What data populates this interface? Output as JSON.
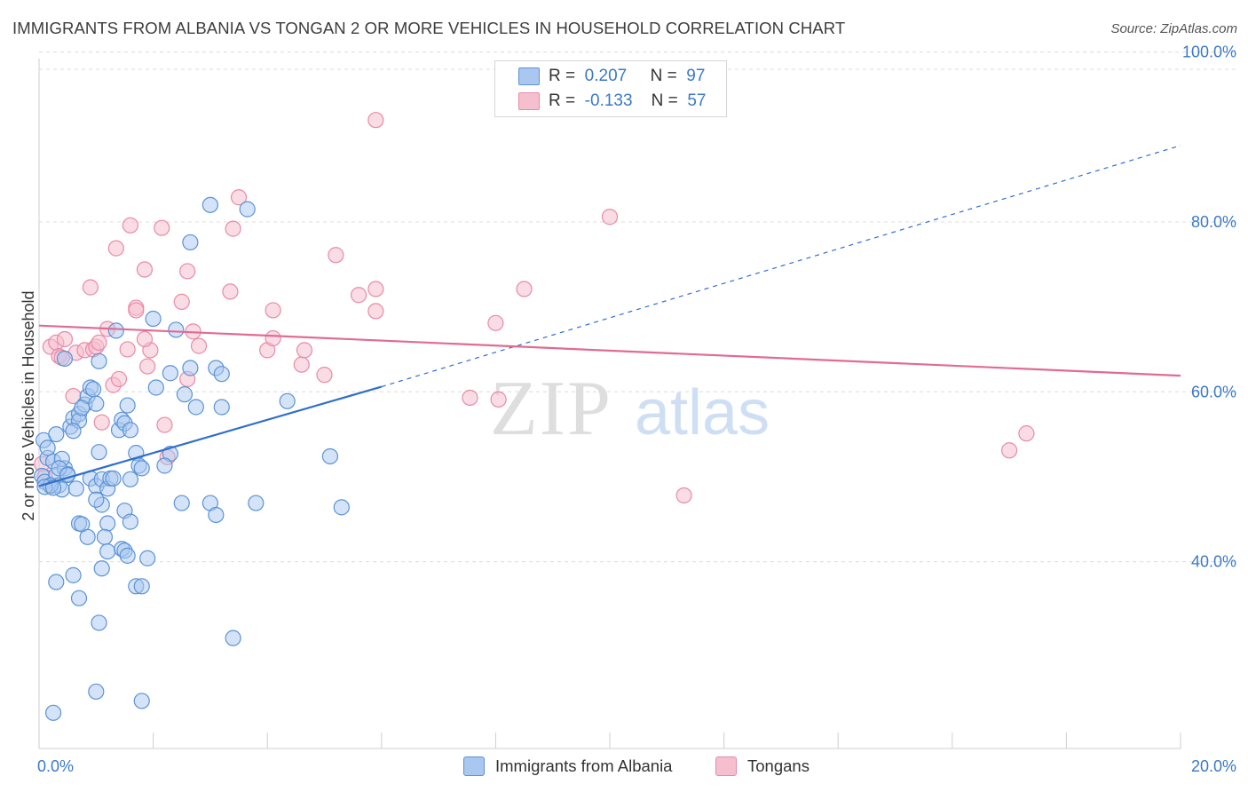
{
  "header": {
    "title": "IMMIGRANTS FROM ALBANIA VS TONGAN 2 OR MORE VEHICLES IN HOUSEHOLD CORRELATION CHART",
    "source": "Source: ZipAtlas.com"
  },
  "legend_top": {
    "rows": [
      {
        "r_label": "R =",
        "r_value": "0.207",
        "n_label": "N =",
        "n_value": "97"
      },
      {
        "r_label": "R =",
        "r_value": "-0.133",
        "n_label": "N =",
        "n_value": "57"
      }
    ]
  },
  "watermark": {
    "zip": "ZIP",
    "atlas": "atlas"
  },
  "colors": {
    "albania_fill": "#a9c7ef",
    "albania_stroke": "#5b93d6",
    "albania_line": "#2f6fcb",
    "tongan_fill": "#f6bfd0",
    "tongan_stroke": "#e88aa9",
    "tongan_line": "#e06b93",
    "tick_text": "#3a78c9",
    "grid": "#dcdcdc"
  },
  "chart_data": {
    "type": "scatter",
    "title": "IMMIGRANTS FROM ALBANIA VS TONGAN 2 OR MORE VEHICLES IN HOUSEHOLD CORRELATION CHART",
    "xlabel": "",
    "ylabel": "2 or more Vehicles in Household",
    "xlim": [
      0,
      20
    ],
    "ylim": [
      18,
      103
    ],
    "x_tick_labels": [
      "0.0%",
      "20.0%"
    ],
    "y_ticks": [
      40,
      60,
      80,
      100
    ],
    "y_tick_labels": [
      "40.0%",
      "60.0%",
      "80.0%",
      "100.0%"
    ],
    "grid": true,
    "legend_placement": "top-center and bottom",
    "series": [
      {
        "name": "Immigrants from Albania",
        "r": 0.207,
        "n": 97,
        "trend": {
          "x0": 0.0,
          "y0": 48.9,
          "x1": 6.0,
          "y1": 60.6,
          "extend_to_x": 20.0,
          "extend_to_y": 89.0
        },
        "points": [
          [
            0.05,
            50.1
          ],
          [
            0.1,
            49.4
          ],
          [
            0.15,
            52.2
          ],
          [
            0.2,
            48.9
          ],
          [
            0.25,
            51.8
          ],
          [
            0.3,
            50.2
          ],
          [
            0.35,
            49.0
          ],
          [
            0.4,
            48.5
          ],
          [
            0.45,
            51.0
          ],
          [
            0.5,
            50.3
          ],
          [
            0.08,
            54.3
          ],
          [
            0.3,
            55.0
          ],
          [
            0.55,
            55.9
          ],
          [
            0.6,
            56.9
          ],
          [
            0.7,
            57.4
          ],
          [
            0.8,
            58.5
          ],
          [
            0.85,
            59.5
          ],
          [
            0.9,
            60.5
          ],
          [
            0.95,
            60.3
          ],
          [
            1.0,
            58.6
          ],
          [
            0.15,
            53.4
          ],
          [
            0.4,
            52.1
          ],
          [
            0.35,
            51.0
          ],
          [
            0.65,
            48.6
          ],
          [
            0.5,
            50.2
          ],
          [
            0.2,
            49.0
          ],
          [
            0.1,
            48.8
          ],
          [
            0.25,
            48.7
          ],
          [
            0.45,
            63.9
          ],
          [
            0.7,
            56.6
          ],
          [
            0.75,
            58.1
          ],
          [
            0.6,
            55.4
          ],
          [
            0.9,
            49.8
          ],
          [
            1.0,
            48.9
          ],
          [
            1.1,
            49.7
          ],
          [
            1.2,
            48.6
          ],
          [
            1.25,
            49.8
          ],
          [
            1.05,
            52.9
          ],
          [
            1.4,
            55.5
          ],
          [
            1.45,
            56.7
          ],
          [
            1.5,
            56.3
          ],
          [
            1.55,
            58.4
          ],
          [
            1.6,
            49.7
          ],
          [
            1.7,
            52.8
          ],
          [
            1.75,
            51.3
          ],
          [
            1.8,
            51.0
          ],
          [
            1.6,
            55.5
          ],
          [
            1.3,
            49.8
          ],
          [
            1.5,
            46.0
          ],
          [
            1.6,
            44.7
          ],
          [
            1.2,
            44.5
          ],
          [
            1.1,
            46.7
          ],
          [
            1.0,
            47.3
          ],
          [
            0.7,
            44.5
          ],
          [
            0.75,
            44.4
          ],
          [
            0.85,
            42.9
          ],
          [
            1.15,
            42.9
          ],
          [
            1.2,
            41.2
          ],
          [
            1.45,
            41.5
          ],
          [
            1.5,
            41.3
          ],
          [
            1.55,
            40.7
          ],
          [
            1.9,
            40.4
          ],
          [
            1.1,
            39.2
          ],
          [
            0.6,
            38.4
          ],
          [
            0.3,
            37.6
          ],
          [
            1.7,
            37.1
          ],
          [
            1.8,
            37.1
          ],
          [
            0.7,
            35.7
          ],
          [
            1.05,
            32.8
          ],
          [
            3.4,
            31.0
          ],
          [
            1.0,
            24.7
          ],
          [
            1.8,
            23.6
          ],
          [
            0.25,
            22.2
          ],
          [
            3.0,
            82.0
          ],
          [
            3.65,
            81.5
          ],
          [
            2.65,
            77.6
          ],
          [
            2.0,
            68.6
          ],
          [
            2.4,
            67.3
          ],
          [
            1.35,
            67.2
          ],
          [
            1.05,
            63.6
          ],
          [
            2.3,
            62.2
          ],
          [
            2.65,
            62.8
          ],
          [
            3.1,
            62.8
          ],
          [
            3.2,
            62.1
          ],
          [
            2.55,
            59.7
          ],
          [
            3.2,
            58.2
          ],
          [
            2.75,
            58.2
          ],
          [
            4.35,
            58.9
          ],
          [
            2.3,
            52.7
          ],
          [
            2.2,
            51.3
          ],
          [
            3.0,
            46.9
          ],
          [
            3.1,
            45.5
          ],
          [
            3.8,
            46.9
          ],
          [
            5.1,
            52.4
          ],
          [
            5.3,
            46.4
          ],
          [
            2.5,
            46.9
          ],
          [
            2.05,
            60.5
          ]
        ]
      },
      {
        "name": "Tongans",
        "r": -0.133,
        "n": 57,
        "trend": {
          "x0": 0.0,
          "y0": 67.8,
          "x1": 20.0,
          "y1": 61.9
        },
        "points": [
          [
            0.05,
            51.5
          ],
          [
            0.1,
            50.0
          ],
          [
            0.2,
            65.3
          ],
          [
            0.3,
            65.8
          ],
          [
            0.35,
            64.2
          ],
          [
            0.4,
            64.0
          ],
          [
            0.45,
            66.2
          ],
          [
            0.6,
            59.5
          ],
          [
            0.65,
            64.6
          ],
          [
            0.8,
            64.9
          ],
          [
            0.9,
            72.3
          ],
          [
            0.95,
            65.0
          ],
          [
            1.0,
            65.3
          ],
          [
            1.05,
            65.8
          ],
          [
            1.1,
            56.4
          ],
          [
            1.2,
            67.4
          ],
          [
            1.3,
            60.8
          ],
          [
            1.4,
            61.5
          ],
          [
            1.35,
            76.9
          ],
          [
            1.55,
            65.0
          ],
          [
            1.7,
            69.9
          ],
          [
            1.9,
            63.0
          ],
          [
            1.95,
            64.9
          ],
          [
            1.85,
            66.2
          ],
          [
            1.85,
            74.4
          ],
          [
            2.15,
            79.3
          ],
          [
            2.2,
            56.1
          ],
          [
            2.25,
            52.3
          ],
          [
            2.5,
            70.6
          ],
          [
            2.6,
            74.2
          ],
          [
            2.7,
            67.1
          ],
          [
            2.8,
            65.4
          ],
          [
            3.35,
            71.8
          ],
          [
            3.4,
            79.2
          ],
          [
            3.5,
            82.9
          ],
          [
            4.0,
            64.9
          ],
          [
            4.1,
            66.3
          ],
          [
            4.1,
            69.6
          ],
          [
            4.6,
            63.2
          ],
          [
            4.65,
            64.9
          ],
          [
            5.0,
            62.0
          ],
          [
            5.2,
            76.1
          ],
          [
            5.6,
            71.4
          ],
          [
            5.9,
            69.5
          ],
          [
            5.9,
            72.1
          ],
          [
            5.9,
            92.0
          ],
          [
            7.55,
            59.3
          ],
          [
            8.0,
            68.1
          ],
          [
            8.05,
            59.1
          ],
          [
            8.5,
            72.1
          ],
          [
            10.0,
            80.6
          ],
          [
            11.3,
            47.8
          ],
          [
            17.0,
            53.1
          ],
          [
            17.3,
            55.1
          ],
          [
            1.7,
            69.6
          ],
          [
            1.6,
            79.6
          ],
          [
            2.6,
            61.5
          ]
        ]
      }
    ]
  },
  "bottom_legend": {
    "albania_label": "Immigrants from Albania",
    "tongan_label": "Tongans"
  }
}
